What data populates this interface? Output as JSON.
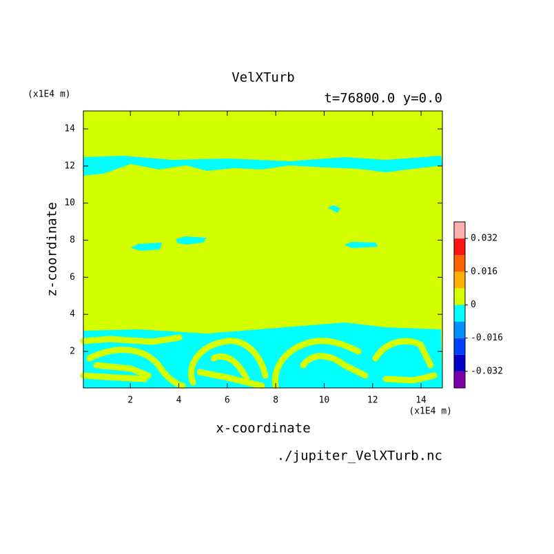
{
  "chart_data": {
    "type": "contour",
    "title": "VelXTurb",
    "subtitle": "t=76800.0 y=0.0",
    "xlabel": "x-coordinate",
    "ylabel": "z-coordinate",
    "xunit": "(x1E4 m)",
    "yunit": "(x1E4 m)",
    "footer": "./jupiter_VelXTurb.nc",
    "xlim": [
      0.06,
      14.88
    ],
    "ylim": [
      0.03,
      14.97
    ],
    "xticks": [
      2,
      4,
      6,
      8,
      10,
      12,
      14
    ],
    "yticks": [
      2,
      4,
      6,
      8,
      10,
      12,
      14
    ],
    "levels": [
      -0.04,
      -0.032,
      -0.024,
      -0.016,
      -0.008,
      0,
      0.008,
      0.016,
      0.024,
      0.032,
      0.04
    ],
    "colors": [
      "#7a00a8",
      "#0000c8",
      "#0040ff",
      "#0090ff",
      "#00ffff",
      "#d4ff00",
      "#ffb000",
      "#ff6000",
      "#ff1414",
      "#ffb0b0"
    ],
    "cticks": [
      0.032,
      0.016,
      0,
      -0.016,
      -0.032
    ]
  }
}
